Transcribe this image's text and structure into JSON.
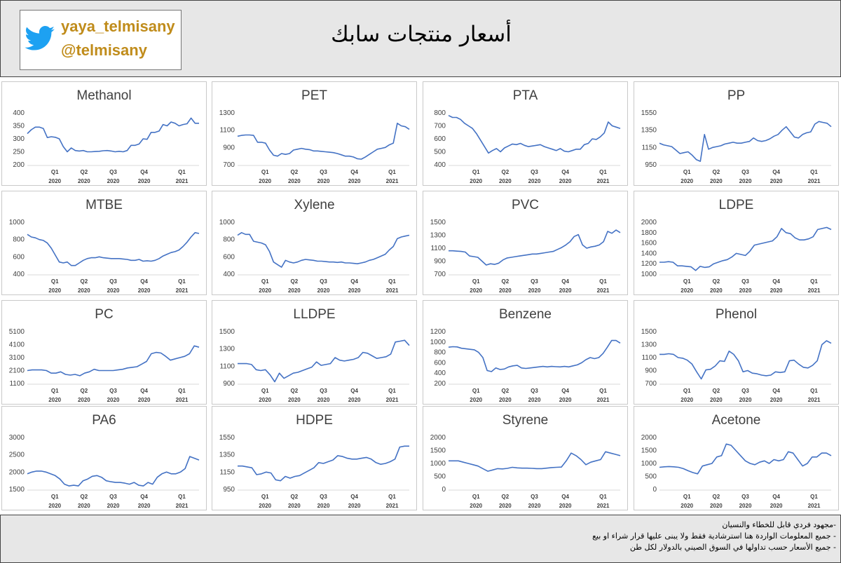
{
  "header": {
    "handle_name": "yaya_telmisany",
    "handle_at": "@telmisany",
    "title": "أسعار منتجات سابك"
  },
  "footer": {
    "notes": [
      "-مجهود فردي قابل للخطاء والنسيان",
      "- جميع المعلومات الواردة هنا استرشادية فقط ولا يبنى عليها قرار شراء او بيع",
      "- جميع الأسعار حسب تداولها في السوق الصيني بالدولار لكل طن"
    ]
  },
  "colors": {
    "line": "#4472c4",
    "header_bg": "#e7e7e7",
    "brand": "#c08c1b",
    "twitter": "#1da1f2"
  },
  "chart_data": [
    {
      "type": "line",
      "title": "Methanol",
      "ylim": [
        200,
        400
      ],
      "yticks": [
        200,
        250,
        300,
        350,
        400
      ],
      "xticks": [
        {
          "q": "Q1",
          "y": "2020"
        },
        {
          "q": "Q2",
          "y": "2020"
        },
        {
          "q": "Q3",
          "y": "2020"
        },
        {
          "q": "Q4",
          "y": "2020"
        },
        {
          "q": "Q1",
          "y": "2021"
        }
      ],
      "values": [
        320,
        335,
        345,
        345,
        340,
        305,
        308,
        306,
        300,
        270,
        250,
        265,
        255,
        253,
        255,
        250,
        250,
        251,
        252,
        254,
        255,
        253,
        250,
        252,
        250,
        255,
        275,
        275,
        280,
        300,
        298,
        325,
        325,
        330,
        355,
        350,
        365,
        360,
        350,
        355,
        358,
        380,
        360,
        360
      ]
    },
    {
      "type": "line",
      "title": "PET",
      "ylim": [
        700,
        1300
      ],
      "yticks": [
        700,
        900,
        1100,
        1300
      ],
      "xticks": [
        {
          "q": "Q1",
          "y": "2020"
        },
        {
          "q": "Q2",
          "y": "2020"
        },
        {
          "q": "Q3",
          "y": "2020"
        },
        {
          "q": "Q4",
          "y": "2020"
        },
        {
          "q": "Q1",
          "y": "2021"
        }
      ],
      "values": [
        1030,
        1040,
        1045,
        1045,
        1040,
        960,
        960,
        950,
        870,
        810,
        800,
        830,
        820,
        830,
        870,
        880,
        890,
        880,
        875,
        860,
        860,
        855,
        850,
        845,
        840,
        830,
        815,
        800,
        800,
        790,
        770,
        765,
        790,
        820,
        850,
        880,
        890,
        900,
        930,
        950,
        1180,
        1150,
        1140,
        1110
      ]
    },
    {
      "type": "line",
      "title": "PTA",
      "ylim": [
        400,
        800
      ],
      "yticks": [
        400,
        500,
        600,
        700,
        800
      ],
      "xticks": [
        {
          "q": "Q1",
          "y": "2020"
        },
        {
          "q": "Q2",
          "y": "2020"
        },
        {
          "q": "Q3",
          "y": "2020"
        },
        {
          "q": "Q4",
          "y": "2020"
        },
        {
          "q": "Q1",
          "y": "2021"
        }
      ],
      "values": [
        780,
        765,
        765,
        750,
        720,
        700,
        680,
        640,
        590,
        540,
        490,
        510,
        525,
        500,
        530,
        545,
        560,
        555,
        565,
        550,
        540,
        545,
        550,
        555,
        540,
        530,
        520,
        510,
        525,
        505,
        500,
        510,
        520,
        520,
        555,
        565,
        600,
        595,
        615,
        645,
        730,
        700,
        690,
        680
      ]
    },
    {
      "type": "line",
      "title": "PP",
      "ylim": [
        950,
        1550
      ],
      "yticks": [
        950,
        1150,
        1350,
        1550
      ],
      "xticks": [
        {
          "q": "Q1",
          "y": "2020"
        },
        {
          "q": "Q2",
          "y": "2020"
        },
        {
          "q": "Q3",
          "y": "2020"
        },
        {
          "q": "Q4",
          "y": "2020"
        },
        {
          "q": "Q1",
          "y": "2021"
        }
      ],
      "values": [
        1200,
        1180,
        1170,
        1160,
        1120,
        1080,
        1090,
        1100,
        1060,
        1010,
        990,
        1300,
        1130,
        1150,
        1160,
        1170,
        1190,
        1200,
        1210,
        1200,
        1200,
        1210,
        1220,
        1260,
        1230,
        1220,
        1230,
        1250,
        1280,
        1300,
        1350,
        1390,
        1330,
        1270,
        1260,
        1300,
        1320,
        1330,
        1420,
        1450,
        1440,
        1430,
        1390
      ]
    },
    {
      "type": "line",
      "title": "MTBE",
      "ylim": [
        400,
        1000
      ],
      "yticks": [
        400,
        600,
        800,
        1000
      ],
      "xticks": [
        {
          "q": "Q1",
          "y": "2020"
        },
        {
          "q": "Q2",
          "y": "2020"
        },
        {
          "q": "Q3",
          "y": "2020"
        },
        {
          "q": "Q4",
          "y": "2020"
        },
        {
          "q": "Q1",
          "y": "2021"
        }
      ],
      "values": [
        860,
        830,
        820,
        800,
        790,
        760,
        700,
        620,
        540,
        530,
        540,
        500,
        500,
        530,
        560,
        580,
        590,
        590,
        600,
        590,
        585,
        580,
        580,
        580,
        575,
        570,
        560,
        560,
        570,
        550,
        555,
        550,
        560,
        580,
        610,
        630,
        650,
        660,
        680,
        720,
        770,
        830,
        880,
        870
      ]
    },
    {
      "type": "line",
      "title": "Xylene",
      "ylim": [
        400,
        1000
      ],
      "yticks": [
        400,
        600,
        800,
        1000
      ],
      "xticks": [
        {
          "q": "Q1",
          "y": "2020"
        },
        {
          "q": "Q2",
          "y": "2020"
        },
        {
          "q": "Q3",
          "y": "2020"
        },
        {
          "q": "Q4",
          "y": "2020"
        },
        {
          "q": "Q1",
          "y": "2021"
        }
      ],
      "values": [
        850,
        880,
        860,
        860,
        780,
        770,
        760,
        740,
        660,
        540,
        510,
        480,
        560,
        540,
        530,
        540,
        560,
        570,
        565,
        560,
        550,
        550,
        545,
        540,
        540,
        535,
        540,
        530,
        530,
        525,
        520,
        530,
        540,
        560,
        570,
        590,
        610,
        630,
        680,
        720,
        810,
        830,
        840,
        850
      ]
    },
    {
      "type": "line",
      "title": "PVC",
      "ylim": [
        700,
        1500
      ],
      "yticks": [
        700,
        900,
        1100,
        1300,
        1500
      ],
      "xticks": [
        {
          "q": "Q1",
          "y": "2020"
        },
        {
          "q": "Q2",
          "y": "2020"
        },
        {
          "q": "Q3",
          "y": "2020"
        },
        {
          "q": "Q4",
          "y": "2020"
        },
        {
          "q": "Q1",
          "y": "2021"
        }
      ],
      "values": [
        1060,
        1060,
        1055,
        1050,
        1040,
        980,
        970,
        960,
        900,
        840,
        860,
        850,
        870,
        920,
        950,
        960,
        970,
        980,
        990,
        1000,
        1010,
        1010,
        1020,
        1030,
        1040,
        1050,
        1080,
        1110,
        1150,
        1200,
        1280,
        1310,
        1150,
        1100,
        1120,
        1130,
        1150,
        1200,
        1360,
        1330,
        1380,
        1340
      ]
    },
    {
      "type": "line",
      "title": "LDPE",
      "ylim": [
        1000,
        2000
      ],
      "yticks": [
        1000,
        1200,
        1400,
        1600,
        1800,
        2000
      ],
      "xticks": [
        {
          "q": "Q1",
          "y": "2020"
        },
        {
          "q": "Q2",
          "y": "2020"
        },
        {
          "q": "Q3",
          "y": "2020"
        },
        {
          "q": "Q4",
          "y": "2020"
        },
        {
          "q": "Q1",
          "y": "2021"
        }
      ],
      "values": [
        1230,
        1230,
        1240,
        1230,
        1160,
        1160,
        1150,
        1140,
        1070,
        1150,
        1130,
        1140,
        1200,
        1230,
        1260,
        1280,
        1330,
        1400,
        1380,
        1360,
        1440,
        1560,
        1580,
        1600,
        1620,
        1640,
        1720,
        1880,
        1800,
        1780,
        1700,
        1660,
        1660,
        1680,
        1720,
        1860,
        1880,
        1900,
        1860
      ]
    },
    {
      "type": "line",
      "title": "PC",
      "ylim": [
        1100,
        5100
      ],
      "yticks": [
        1100,
        2100,
        3100,
        4100,
        5100
      ],
      "xticks": [
        {
          "q": "Q1",
          "y": "2020"
        },
        {
          "q": "Q2",
          "y": "2020"
        },
        {
          "q": "Q3",
          "y": "2020"
        },
        {
          "q": "Q4",
          "y": "2020"
        },
        {
          "q": "Q1",
          "y": "2021"
        }
      ],
      "values": [
        2100,
        2150,
        2150,
        2150,
        2100,
        1900,
        1900,
        2000,
        1800,
        1750,
        1800,
        1700,
        1900,
        2000,
        2200,
        2100,
        2100,
        2100,
        2100,
        2150,
        2200,
        2300,
        2350,
        2400,
        2600,
        2800,
        3400,
        3500,
        3450,
        3200,
        2900,
        3000,
        3100,
        3200,
        3400,
        4000,
        3900
      ]
    },
    {
      "type": "line",
      "title": "LLDPE",
      "ylim": [
        900,
        1500
      ],
      "yticks": [
        900,
        1100,
        1300,
        1500
      ],
      "xticks": [
        {
          "q": "Q1",
          "y": "2020"
        },
        {
          "q": "Q2",
          "y": "2020"
        },
        {
          "q": "Q3",
          "y": "2020"
        },
        {
          "q": "Q4",
          "y": "2020"
        },
        {
          "q": "Q1",
          "y": "2021"
        }
      ],
      "values": [
        1130,
        1130,
        1130,
        1120,
        1060,
        1050,
        1060,
        1000,
        920,
        1020,
        960,
        990,
        1020,
        1030,
        1050,
        1070,
        1090,
        1150,
        1110,
        1120,
        1130,
        1200,
        1170,
        1160,
        1170,
        1180,
        1200,
        1260,
        1250,
        1220,
        1190,
        1200,
        1210,
        1240,
        1380,
        1390,
        1400,
        1340
      ]
    },
    {
      "type": "line",
      "title": "Benzene",
      "ylim": [
        200,
        1200
      ],
      "yticks": [
        200,
        400,
        600,
        800,
        1000,
        1200
      ],
      "xticks": [
        {
          "q": "Q1",
          "y": "2020"
        },
        {
          "q": "Q2",
          "y": "2020"
        },
        {
          "q": "Q3",
          "y": "2020"
        },
        {
          "q": "Q4",
          "y": "2020"
        },
        {
          "q": "Q1",
          "y": "2021"
        }
      ],
      "values": [
        900,
        910,
        905,
        880,
        870,
        860,
        850,
        800,
        700,
        450,
        430,
        500,
        470,
        480,
        520,
        540,
        550,
        500,
        490,
        500,
        510,
        520,
        530,
        520,
        530,
        525,
        520,
        530,
        520,
        540,
        560,
        600,
        660,
        700,
        680,
        700,
        780,
        900,
        1030,
        1030,
        980
      ]
    },
    {
      "type": "line",
      "title": "Phenol",
      "ylim": [
        700,
        1500
      ],
      "yticks": [
        700,
        900,
        1100,
        1300,
        1500
      ],
      "xticks": [
        {
          "q": "Q1",
          "y": "2020"
        },
        {
          "q": "Q2",
          "y": "2020"
        },
        {
          "q": "Q3",
          "y": "2020"
        },
        {
          "q": "Q4",
          "y": "2020"
        },
        {
          "q": "Q1",
          "y": "2021"
        }
      ],
      "values": [
        1150,
        1150,
        1160,
        1150,
        1100,
        1090,
        1060,
        1000,
        880,
        770,
        910,
        920,
        970,
        1050,
        1040,
        1200,
        1150,
        1050,
        880,
        900,
        860,
        850,
        830,
        820,
        830,
        880,
        870,
        880,
        1050,
        1060,
        1000,
        950,
        940,
        980,
        1050,
        1300,
        1360,
        1320
      ]
    },
    {
      "type": "line",
      "title": "PA6",
      "ylim": [
        1500,
        3000
      ],
      "yticks": [
        1500,
        2000,
        2500,
        3000
      ],
      "xticks": [
        {
          "q": "Q1",
          "y": "2020"
        },
        {
          "q": "Q2",
          "y": "2020"
        },
        {
          "q": "Q3",
          "y": "2020"
        },
        {
          "q": "Q4",
          "y": "2020"
        },
        {
          "q": "Q1",
          "y": "2021"
        }
      ],
      "values": [
        1950,
        2000,
        2030,
        2030,
        2000,
        1950,
        1900,
        1800,
        1650,
        1600,
        1620,
        1600,
        1750,
        1800,
        1880,
        1900,
        1850,
        1750,
        1720,
        1700,
        1700,
        1680,
        1650,
        1700,
        1620,
        1600,
        1700,
        1650,
        1850,
        1950,
        2000,
        1950,
        1950,
        2000,
        2100,
        2450,
        2400,
        2350
      ]
    },
    {
      "type": "line",
      "title": "HDPE",
      "ylim": [
        950,
        1550
      ],
      "yticks": [
        950,
        1150,
        1350,
        1550
      ],
      "xticks": [
        {
          "q": "Q1",
          "y": "2020"
        },
        {
          "q": "Q2",
          "y": "2020"
        },
        {
          "q": "Q3",
          "y": "2020"
        },
        {
          "q": "Q4",
          "y": "2020"
        },
        {
          "q": "Q1",
          "y": "2021"
        }
      ],
      "values": [
        1220,
        1220,
        1210,
        1200,
        1120,
        1130,
        1150,
        1140,
        1060,
        1050,
        1100,
        1080,
        1100,
        1110,
        1140,
        1170,
        1200,
        1260,
        1250,
        1270,
        1290,
        1340,
        1330,
        1310,
        1300,
        1300,
        1310,
        1320,
        1300,
        1260,
        1240,
        1250,
        1270,
        1300,
        1440,
        1450,
        1450
      ]
    },
    {
      "type": "line",
      "title": "Styrene",
      "ylim": [
        0,
        2000
      ],
      "yticks": [
        0,
        500,
        1000,
        1500,
        2000
      ],
      "xticks": [
        {
          "q": "Q1",
          "y": "2020"
        },
        {
          "q": "Q2",
          "y": "2020"
        },
        {
          "q": "Q3",
          "y": "2020"
        },
        {
          "q": "Q4",
          "y": "2020"
        },
        {
          "q": "Q1",
          "y": "2021"
        }
      ],
      "values": [
        1100,
        1100,
        1100,
        1050,
        1000,
        950,
        900,
        800,
        700,
        750,
        800,
        790,
        810,
        850,
        830,
        820,
        820,
        810,
        800,
        800,
        820,
        840,
        850,
        860,
        1100,
        1400,
        1300,
        1150,
        950,
        1050,
        1100,
        1150,
        1450,
        1400,
        1350,
        1300
      ]
    },
    {
      "type": "line",
      "title": "Acetone",
      "ylim": [
        0,
        2000
      ],
      "yticks": [
        0,
        500,
        1000,
        1500,
        2000
      ],
      "xticks": [
        {
          "q": "Q1",
          "y": "2020"
        },
        {
          "q": "Q2",
          "y": "2020"
        },
        {
          "q": "Q3",
          "y": "2020"
        },
        {
          "q": "Q4",
          "y": "2020"
        },
        {
          "q": "Q1",
          "y": "2021"
        }
      ],
      "values": [
        850,
        870,
        880,
        870,
        850,
        800,
        720,
        650,
        600,
        900,
        950,
        1000,
        1250,
        1300,
        1750,
        1700,
        1500,
        1300,
        1100,
        1000,
        950,
        1050,
        1100,
        1000,
        1150,
        1100,
        1150,
        1450,
        1400,
        1150,
        900,
        1000,
        1250,
        1250,
        1400,
        1400,
        1300
      ]
    }
  ]
}
